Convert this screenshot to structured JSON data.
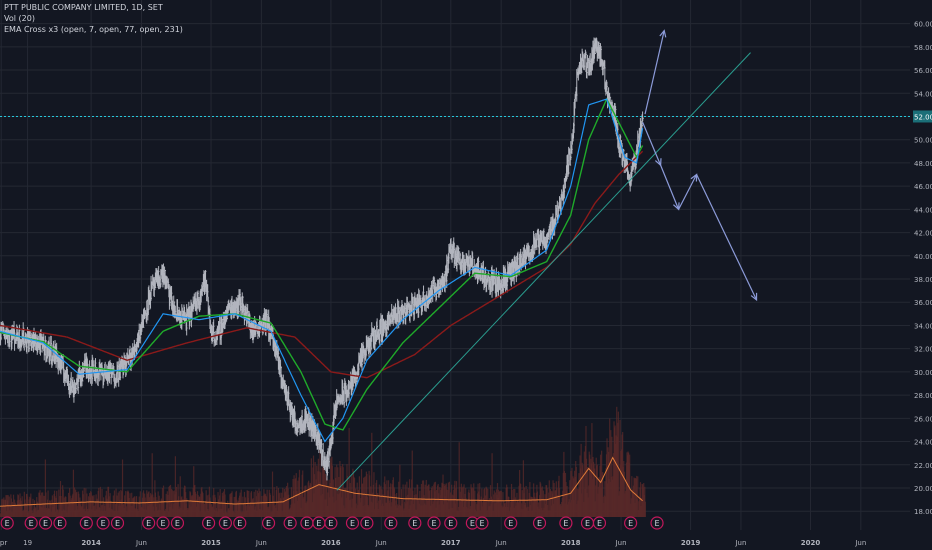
{
  "legend": {
    "symbol_line": "PTT PUBLIC COMPANY LIMITED, 1D, SET",
    "vol_line": "Vol (20)",
    "ema_line": "EMA Cross x3 (open, 7, open, 77, open, 231)"
  },
  "colors": {
    "background": "#131722",
    "grid": "#242833",
    "axis_text": "#b2b5be",
    "price_bar": "#b2b5be",
    "ema_fast": "#2196f3",
    "ema_mid": "#1faa2a",
    "ema_slow": "#8b1a1a",
    "trendline": "#2a9d8f",
    "level_line": "#26c6da",
    "arrows": "#8c9bd9",
    "volume_bars": "#5b2a2a",
    "volume_ma": "#e07b39",
    "earnings_marker": "#c2185b"
  },
  "chart_data": {
    "type": "line",
    "y_axis": {
      "ticks": [
        "60.00",
        "58.00",
        "56.00",
        "54.00",
        "52.00",
        "50.00",
        "48.00",
        "46.00",
        "44.00",
        "42.00",
        "40.00",
        "38.00",
        "36.00",
        "34.00",
        "32.00",
        "30.00",
        "28.00",
        "26.00",
        "24.00",
        "22.00",
        "20.00",
        "18.00"
      ],
      "range": [
        17.5,
        61
      ],
      "highlighted_level": "52.00"
    },
    "x_axis": {
      "ticks": [
        "Apr",
        "19",
        "2014",
        "Jun",
        "2015",
        "Jun",
        "2016",
        "Jun",
        "2017",
        "Jun",
        "2018",
        "Jun",
        "2019",
        "Jun",
        "2020",
        "Jun"
      ],
      "tick_dates": [
        2013.25,
        2013.47,
        2014.0,
        2014.42,
        2015.0,
        2015.42,
        2016.0,
        2016.42,
        2017.0,
        2017.42,
        2018.0,
        2018.42,
        2019.0,
        2019.42,
        2020.0,
        2020.42
      ],
      "range": [
        2013.24,
        2020.83
      ]
    },
    "price_series": {
      "name": "PTT",
      "x": [
        2013.24,
        2013.4,
        2013.55,
        2013.7,
        2013.85,
        2013.95,
        2014.05,
        2014.2,
        2014.35,
        2014.5,
        2014.6,
        2014.7,
        2014.8,
        2014.9,
        2014.95,
        2015.0,
        2015.05,
        2015.15,
        2015.25,
        2015.35,
        2015.45,
        2015.5,
        2015.6,
        2015.7,
        2015.8,
        2015.9,
        2015.96,
        2016.05,
        2016.15,
        2016.25,
        2016.35,
        2016.45,
        2016.55,
        2016.65,
        2016.75,
        2016.85,
        2016.95,
        2017.0,
        2017.1,
        2017.2,
        2017.3,
        2017.4,
        2017.5,
        2017.6,
        2017.7,
        2017.8,
        2017.9,
        2018.0,
        2018.05,
        2018.1,
        2018.15,
        2018.2,
        2018.25,
        2018.3,
        2018.35,
        2018.4,
        2018.45,
        2018.5,
        2018.55,
        2018.6
      ],
      "y": [
        33.5,
        33,
        32.5,
        31.5,
        28.5,
        30.5,
        30,
        29.8,
        31.5,
        37,
        38.5,
        35,
        34.5,
        36.5,
        38,
        33.5,
        33,
        35.5,
        36,
        33.5,
        34.5,
        33.5,
        29,
        25.5,
        26,
        24.2,
        21.5,
        27.5,
        28.5,
        31,
        33,
        34,
        35,
        35.5,
        36,
        37,
        38,
        40.5,
        39.5,
        39,
        38,
        37.5,
        38.5,
        39.5,
        41,
        41.5,
        44,
        49,
        55,
        57,
        56,
        58,
        57.5,
        54,
        53,
        50,
        48,
        46.5,
        49,
        52
      ]
    },
    "ema_fast": {
      "x": [
        2013.24,
        2013.6,
        2013.9,
        2014.3,
        2014.6,
        2014.9,
        2015.2,
        2015.5,
        2015.75,
        2015.95,
        2016.1,
        2016.3,
        2016.6,
        2016.9,
        2017.2,
        2017.5,
        2017.8,
        2018.0,
        2018.15,
        2018.3,
        2018.45,
        2018.55,
        2018.6
      ],
      "y": [
        33.5,
        32.5,
        29.8,
        30.2,
        35,
        34.5,
        35,
        33.5,
        28,
        24,
        26,
        31,
        34.5,
        37,
        39,
        38.3,
        40.5,
        46,
        53,
        53.5,
        48.5,
        48,
        51
      ]
    },
    "ema_mid": {
      "x": [
        2013.24,
        2013.6,
        2013.9,
        2014.3,
        2014.6,
        2014.9,
        2015.2,
        2015.5,
        2015.75,
        2015.95,
        2016.1,
        2016.3,
        2016.6,
        2016.9,
        2017.2,
        2017.5,
        2017.8,
        2018.0,
        2018.15,
        2018.3,
        2018.45,
        2018.55,
        2018.6
      ],
      "y": [
        33.4,
        32.6,
        30.5,
        30,
        33.5,
        34.8,
        35,
        34.2,
        30,
        25.5,
        25,
        28.5,
        32.5,
        35.5,
        38.5,
        38.2,
        39.5,
        43.5,
        50,
        53.5,
        50.5,
        48.5,
        49.5
      ]
    },
    "ema_slow": {
      "x": [
        2013.24,
        2013.8,
        2014.3,
        2014.8,
        2015.3,
        2015.7,
        2016.0,
        2016.3,
        2016.7,
        2017.0,
        2017.4,
        2017.8,
        2018.0,
        2018.2,
        2018.4,
        2018.55,
        2018.6
      ],
      "y": [
        34,
        33,
        31,
        32.5,
        33.8,
        33,
        30,
        29.5,
        31.5,
        34,
        36.5,
        39,
        41,
        44.5,
        47,
        48.5,
        49
      ]
    },
    "volume_ma": {
      "x": [
        2013.24,
        2013.6,
        2014.0,
        2014.4,
        2014.8,
        2015.2,
        2015.6,
        2015.9,
        2016.2,
        2016.6,
        2017.0,
        2017.4,
        2017.8,
        2018.0,
        2018.15,
        2018.25,
        2018.35,
        2018.5,
        2018.6
      ],
      "y": [
        0.1,
        0.12,
        0.14,
        0.13,
        0.15,
        0.12,
        0.14,
        0.3,
        0.22,
        0.17,
        0.16,
        0.15,
        0.16,
        0.22,
        0.45,
        0.32,
        0.55,
        0.25,
        0.15
      ]
    },
    "trendline": {
      "x": [
        2016.05,
        2019.5
      ],
      "y": [
        19.8,
        57.5
      ]
    },
    "arrows": [
      {
        "from": [
          2018.6,
          51.5
        ],
        "to": [
          2018.75,
          47.8
        ]
      },
      {
        "from": [
          2018.62,
          52.2
        ],
        "to": [
          2018.78,
          59.4
        ]
      },
      {
        "from": [
          2018.75,
          47.8
        ],
        "to": [
          2018.9,
          44.0
        ]
      },
      {
        "from": [
          2018.9,
          44.0
        ],
        "to": [
          2019.05,
          47.0
        ]
      },
      {
        "from": [
          2019.05,
          47.0
        ],
        "to": [
          2019.55,
          36.2
        ]
      }
    ],
    "earnings_markers": {
      "label": "E",
      "x": [
        2013.3,
        2013.5,
        2013.62,
        2013.74,
        2013.96,
        2014.1,
        2014.22,
        2014.48,
        2014.6,
        2014.72,
        2014.98,
        2015.12,
        2015.24,
        2015.48,
        2015.66,
        2015.8,
        2015.9,
        2016.0,
        2016.18,
        2016.3,
        2016.5,
        2016.7,
        2016.86,
        2017.0,
        2017.18,
        2017.26,
        2017.5,
        2017.74,
        2017.96,
        2018.14,
        2018.24,
        2018.5,
        2018.72
      ]
    }
  }
}
